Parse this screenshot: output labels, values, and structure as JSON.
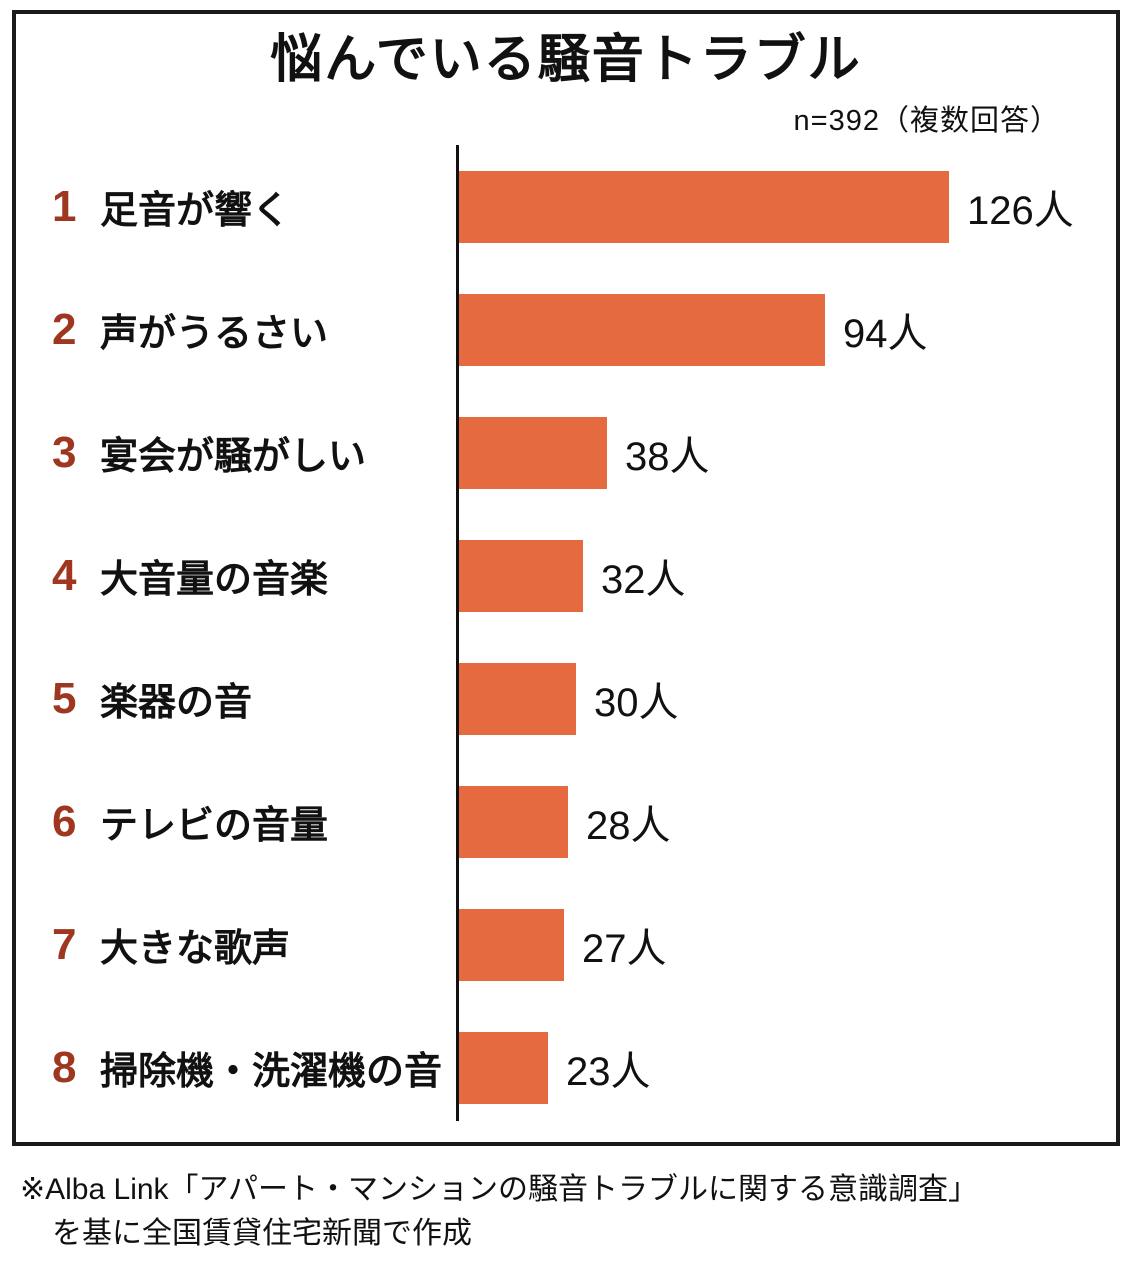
{
  "chart_data": {
    "type": "bar",
    "orientation": "horizontal",
    "title": "悩んでいる騒音トラブル",
    "sample_label": "n=392（複数回答）",
    "sample_size": 392,
    "categories": [
      "足音が響く",
      "声がうるさい",
      "宴会が騒がしい",
      "大音量の音楽",
      "楽器の音",
      "テレビの音量",
      "大きな歌声",
      "掃除機・洗濯機の音"
    ],
    "ranks": [
      "1",
      "2",
      "3",
      "4",
      "5",
      "6",
      "7",
      "8"
    ],
    "values": [
      126,
      94,
      38,
      32,
      30,
      28,
      27,
      23
    ],
    "value_labels": [
      "126人",
      "94人",
      "38人",
      "32人",
      "30人",
      "28人",
      "27人",
      "23人"
    ],
    "unit": "人",
    "xlim": [
      0,
      130
    ],
    "legend": "none",
    "grid": false,
    "bar_color": "#e56a40",
    "rank_color": "#9e3620",
    "axis_color": "#111111"
  },
  "footnote": {
    "line1": "※Alba Link「アパート・マンションの騒音トラブルに関する意識調査」",
    "line2": "を基に全国賃貸住宅新聞で作成"
  }
}
